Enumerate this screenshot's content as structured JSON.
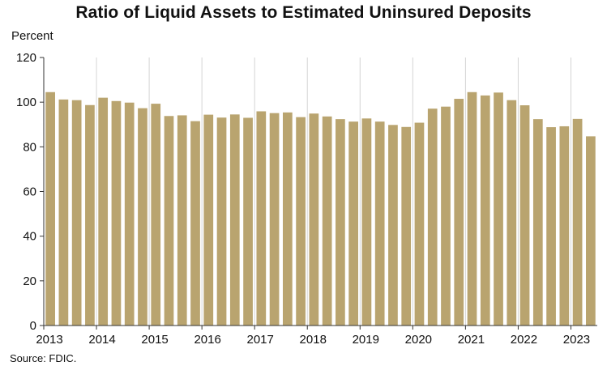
{
  "chart_data": {
    "type": "bar",
    "title": "Ratio of Liquid Assets to Estimated Uninsured Deposits",
    "ylabel": "Percent",
    "source": "Source: FDIC.",
    "ylim": [
      0,
      120
    ],
    "yticks": [
      0,
      20,
      40,
      60,
      80,
      100,
      120
    ],
    "xtick_labels": [
      "2013",
      "2014",
      "2015",
      "2016",
      "2017",
      "2018",
      "2019",
      "2020",
      "2021",
      "2022",
      "2023"
    ],
    "categories": [
      "2013Q1",
      "2013Q2",
      "2013Q3",
      "2013Q4",
      "2014Q1",
      "2014Q2",
      "2014Q3",
      "2014Q4",
      "2015Q1",
      "2015Q2",
      "2015Q3",
      "2015Q4",
      "2016Q1",
      "2016Q2",
      "2016Q3",
      "2016Q4",
      "2017Q1",
      "2017Q2",
      "2017Q3",
      "2017Q4",
      "2018Q1",
      "2018Q2",
      "2018Q3",
      "2018Q4",
      "2019Q1",
      "2019Q2",
      "2019Q3",
      "2019Q4",
      "2020Q1",
      "2020Q2",
      "2020Q3",
      "2020Q4",
      "2021Q1",
      "2021Q2",
      "2021Q3",
      "2021Q4",
      "2022Q1",
      "2022Q2",
      "2022Q3",
      "2022Q4",
      "2023Q1",
      "2023Q2"
    ],
    "values": [
      104.5,
      101.2,
      100.9,
      98.7,
      102.0,
      100.5,
      99.8,
      97.3,
      99.3,
      93.8,
      94.1,
      91.5,
      94.4,
      93.1,
      94.5,
      93.0,
      95.9,
      95.1,
      95.4,
      93.3,
      94.9,
      93.6,
      92.4,
      91.3,
      92.7,
      91.3,
      89.8,
      88.9,
      90.8,
      97.1,
      98.0,
      101.5,
      104.5,
      103.0,
      104.3,
      100.9,
      98.6,
      92.4,
      88.8,
      89.2,
      92.5,
      84.7
    ],
    "grid": "vertical lines at year boundaries",
    "colors": {
      "bar": "#b9a46f",
      "grid": "#d4d4d4",
      "axis": "#333333"
    }
  }
}
